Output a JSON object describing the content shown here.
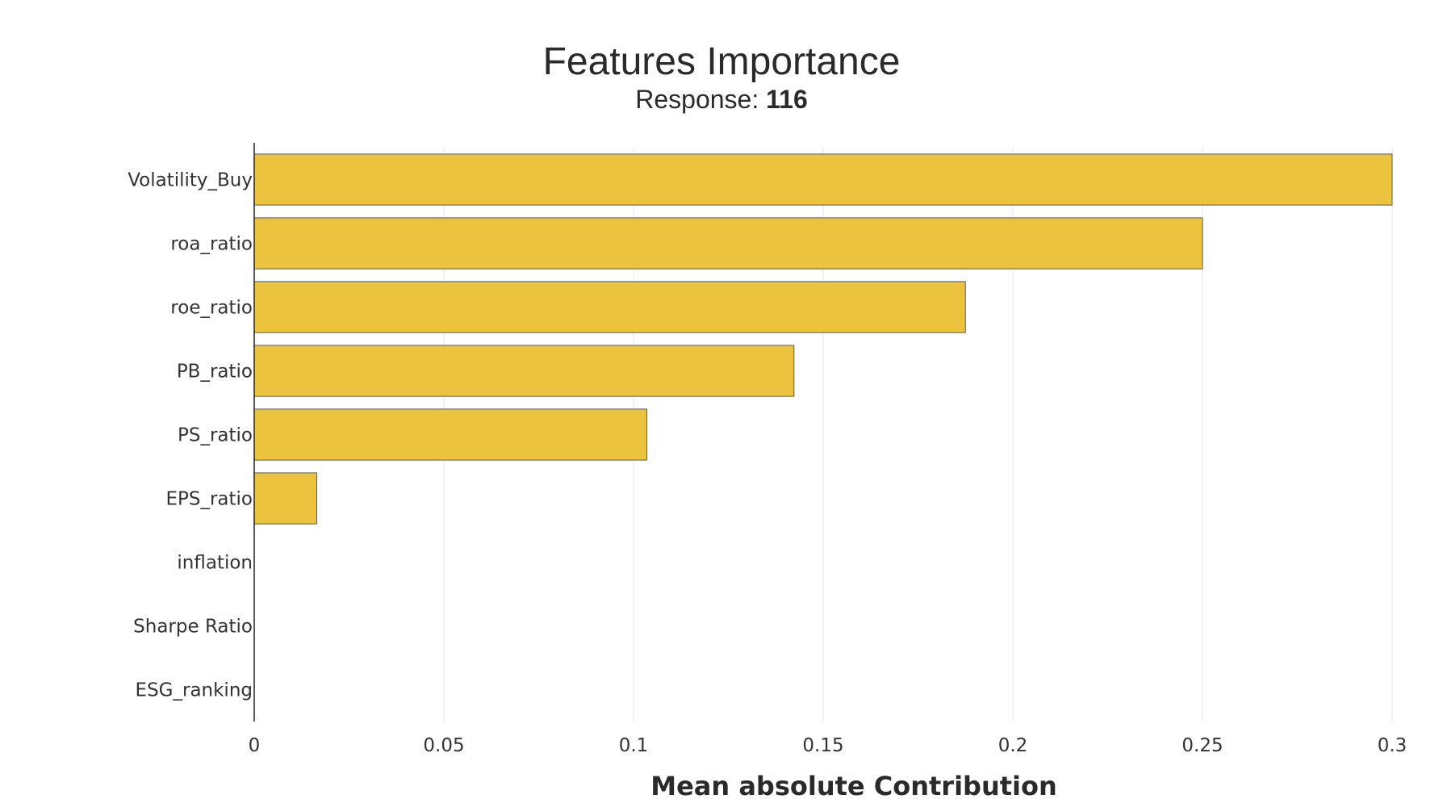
{
  "chart_data": {
    "type": "bar",
    "orientation": "horizontal",
    "title": "Features Importance",
    "subtitle_prefix": "Response: ",
    "subtitle_value": "116",
    "xlabel": "Mean absolute Contribution",
    "ylabel": "",
    "xlim": [
      0,
      0.3
    ],
    "xticks": [
      0,
      0.05,
      0.1,
      0.15,
      0.2,
      0.25,
      0.3
    ],
    "xtick_labels": [
      "0",
      "0.05",
      "0.1",
      "0.15",
      "0.2",
      "0.25",
      "0.3"
    ],
    "categories": [
      "Volatility_Buy",
      "roa_ratio",
      "roe_ratio",
      "PB_ratio",
      "PS_ratio",
      "EPS_ratio",
      "inflation",
      "Sharpe Ratio",
      "ESG_ranking"
    ],
    "values": [
      0.3,
      0.25,
      0.1875,
      0.1423,
      0.1035,
      0.0165,
      0,
      0,
      0
    ],
    "grid": true,
    "legend": "none",
    "bar_color": "#EBC33F",
    "bar_edge_color": "#5a5a5a",
    "grid_color": "#e6e6e6",
    "axis_color": "#222222"
  }
}
